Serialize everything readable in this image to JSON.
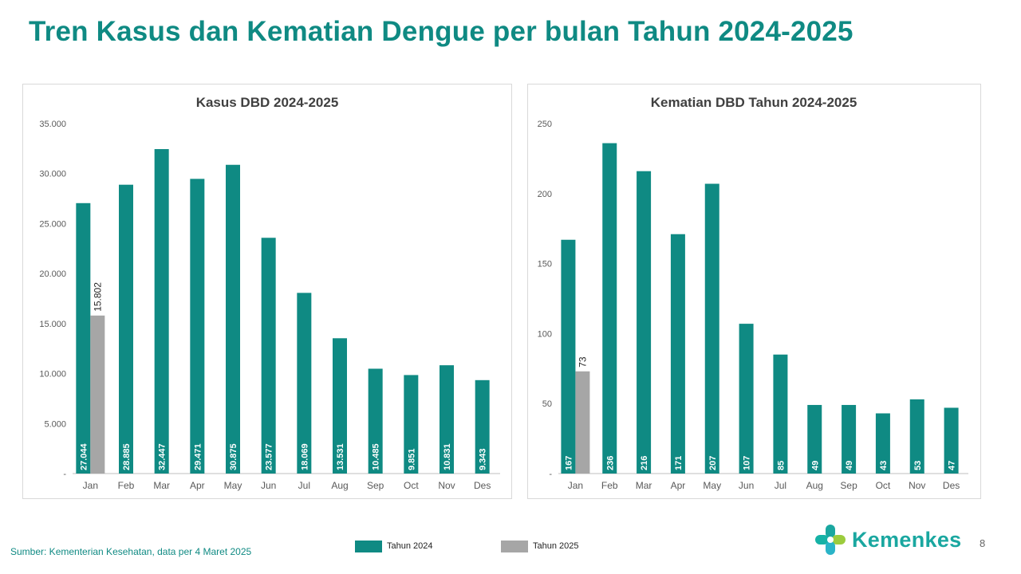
{
  "page": {
    "title": "Tren Kasus dan Kematian Dengue per bulan Tahun 2024-2025",
    "source": "Sumber: Kementerian Kesehatan, data per 4 Maret 2025",
    "page_number": "8",
    "logo_text": "Kemenkes"
  },
  "colors": {
    "series_2024": "#0f8a83",
    "series_2025": "#a6a6a6",
    "title": "#0f8a83"
  },
  "legend": [
    {
      "name": "Tahun 2024",
      "color": "#0f8a83"
    },
    {
      "name": "Tahun 2025",
      "color": "#a6a6a6"
    }
  ],
  "chart_data": [
    {
      "type": "bar",
      "title": "Kasus DBD 2024-2025",
      "categories": [
        "Jan",
        "Feb",
        "Mar",
        "Apr",
        "May",
        "Jun",
        "Jul",
        "Aug",
        "Sep",
        "Oct",
        "Nov",
        "Des"
      ],
      "ylim": [
        0,
        35000
      ],
      "yticks": [
        {
          "value": 0,
          "label": "-"
        },
        {
          "value": 5000,
          "label": "5.000"
        },
        {
          "value": 10000,
          "label": "10.000"
        },
        {
          "value": 15000,
          "label": "15.000"
        },
        {
          "value": 20000,
          "label": "20.000"
        },
        {
          "value": 25000,
          "label": "25.000"
        },
        {
          "value": 30000,
          "label": "30.000"
        },
        {
          "value": 35000,
          "label": "35.000"
        }
      ],
      "series": [
        {
          "name": "Tahun 2024",
          "values": [
            27044,
            28885,
            32447,
            29471,
            30875,
            23577,
            18069,
            13531,
            10485,
            9851,
            10831,
            9343
          ],
          "labels": [
            "27.044",
            "28.885",
            "32.447",
            "29.471",
            "30.875",
            "23.577",
            "18.069",
            "13.531",
            "10.485",
            "9.851",
            "10.831",
            "9.343"
          ]
        },
        {
          "name": "Tahun 2025",
          "values": [
            15802,
            null,
            null,
            null,
            null,
            null,
            null,
            null,
            null,
            null,
            null,
            null
          ],
          "labels": [
            "15.802",
            null,
            null,
            null,
            null,
            null,
            null,
            null,
            null,
            null,
            null,
            null
          ]
        }
      ],
      "grid": false,
      "legend": "bottom"
    },
    {
      "type": "bar",
      "title": "Kematian DBD Tahun 2024-2025",
      "categories": [
        "Jan",
        "Feb",
        "Mar",
        "Apr",
        "May",
        "Jun",
        "Jul",
        "Aug",
        "Sep",
        "Oct",
        "Nov",
        "Des"
      ],
      "ylim": [
        0,
        250
      ],
      "yticks": [
        {
          "value": 0,
          "label": "-"
        },
        {
          "value": 50,
          "label": "50"
        },
        {
          "value": 100,
          "label": "100"
        },
        {
          "value": 150,
          "label": "150"
        },
        {
          "value": 200,
          "label": "200"
        },
        {
          "value": 250,
          "label": "250"
        }
      ],
      "series": [
        {
          "name": "Tahun 2024",
          "values": [
            167,
            236,
            216,
            171,
            207,
            107,
            85,
            49,
            49,
            43,
            53,
            47
          ],
          "labels": [
            "167",
            "236",
            "216",
            "171",
            "207",
            "107",
            "85",
            "49",
            "49",
            "43",
            "53",
            "47"
          ]
        },
        {
          "name": "Tahun 2025",
          "values": [
            73,
            null,
            null,
            null,
            null,
            null,
            null,
            null,
            null,
            null,
            null,
            null
          ],
          "labels": [
            "73",
            null,
            null,
            null,
            null,
            null,
            null,
            null,
            null,
            null,
            null,
            null
          ]
        }
      ],
      "grid": false,
      "legend": "bottom"
    }
  ]
}
